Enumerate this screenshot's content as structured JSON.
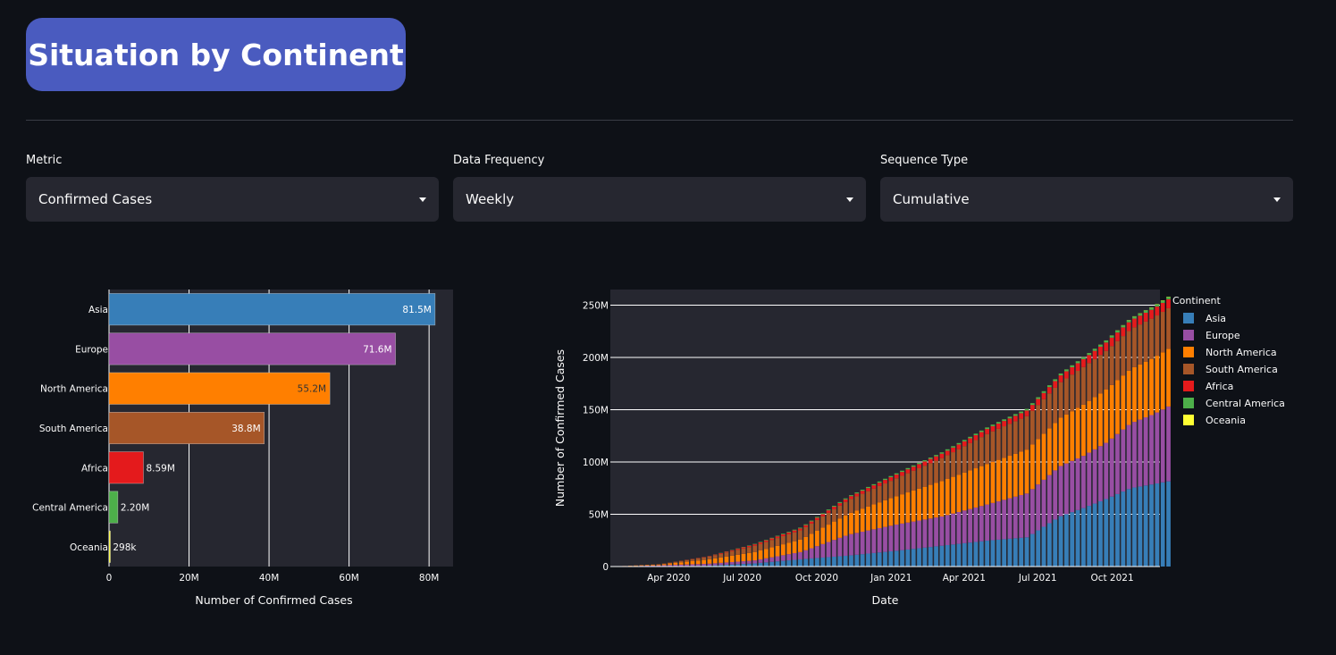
{
  "page": {
    "title": "Situation by Continent"
  },
  "filters": [
    {
      "label": "Metric",
      "value": "Confirmed Cases"
    },
    {
      "label": "Data Frequency",
      "value": "Weekly"
    },
    {
      "label": "Sequence Type",
      "value": "Cumulative"
    }
  ],
  "colors": {
    "background": "#0e1117",
    "plot_bg": "#262730",
    "accent": "#4a5bbf",
    "Asia": "#377eb8",
    "Europe": "#984ea3",
    "North America": "#ff7f00",
    "South America": "#a65628",
    "Africa": "#e41a1c",
    "Central America": "#4daf4a",
    "Oceania": "#ffff33"
  },
  "chart_data": [
    {
      "type": "bar",
      "orientation": "horizontal",
      "categories": [
        "Asia",
        "Europe",
        "North America",
        "South America",
        "Africa",
        "Central America",
        "Oceania"
      ],
      "values": [
        81500000,
        71600000,
        55200000,
        38800000,
        8590000,
        2200000,
        298000
      ],
      "data_labels": [
        "81.5M",
        "71.6M",
        "55.2M",
        "38.8M",
        "8.59M",
        "2.20M",
        "298k"
      ],
      "xlabel": "Number of Confirmed Cases",
      "ylabel": "",
      "xlim": [
        0,
        86000000
      ],
      "xticks": [
        0,
        20000000,
        40000000,
        60000000,
        80000000
      ],
      "xtick_labels": [
        "0",
        "20M",
        "40M",
        "60M",
        "80M"
      ],
      "grid": true
    },
    {
      "type": "bar",
      "stacked": true,
      "xlabel": "Date",
      "ylabel": "Number of Confirmed Cases",
      "ylim": [
        0,
        265000000
      ],
      "yticks": [
        0,
        50000000,
        100000000,
        150000000,
        200000000,
        250000000
      ],
      "ytick_labels": [
        "0",
        "50M",
        "100M",
        "150M",
        "200M",
        "250M"
      ],
      "xticks": [
        "2020-04-01",
        "2020-07-01",
        "2020-10-01",
        "2021-01-01",
        "2021-04-01",
        "2021-07-01",
        "2021-10-01"
      ],
      "xtick_labels": [
        "Apr 2020",
        "Jul 2020",
        "Oct 2020",
        "Jan 2021",
        "Apr 2021",
        "Jul 2021",
        "Oct 2021"
      ],
      "x_start": "2020-01-20",
      "x_end": "2021-11-29",
      "legend": {
        "title": "Continent",
        "placement": "right"
      },
      "series": [
        {
          "name": "Asia",
          "anchors": [
            [
              0,
              0
            ],
            [
              10,
              0.2
            ],
            [
              20,
              0.8
            ],
            [
              30,
              3
            ],
            [
              40,
              7
            ],
            [
              50,
              10.5
            ],
            [
              60,
              15
            ],
            [
              70,
              20
            ],
            [
              80,
              25
            ],
            [
              88,
              28
            ],
            [
              95,
              48
            ],
            [
              100,
              56
            ],
            [
              105,
              65
            ],
            [
              110,
              75
            ],
            [
              115,
              79
            ],
            [
              118,
              81.5
            ]
          ]
        },
        {
          "name": "Europe",
          "anchors": [
            [
              0,
              0
            ],
            [
              10,
              1
            ],
            [
              20,
              1.8
            ],
            [
              30,
              2.8
            ],
            [
              40,
              7
            ],
            [
              50,
              20
            ],
            [
              60,
              25
            ],
            [
              70,
              28
            ],
            [
              80,
              35
            ],
            [
              88,
              42
            ],
            [
              95,
              48
            ],
            [
              100,
              50
            ],
            [
              105,
              54
            ],
            [
              110,
              62
            ],
            [
              115,
              67
            ],
            [
              118,
              71.6
            ]
          ]
        },
        {
          "name": "North America",
          "anchors": [
            [
              0,
              0
            ],
            [
              10,
              0.8
            ],
            [
              20,
              4
            ],
            [
              30,
              8
            ],
            [
              40,
              12
            ],
            [
              50,
              20
            ],
            [
              60,
              27
            ],
            [
              70,
              34
            ],
            [
              80,
              39
            ],
            [
              88,
              42
            ],
            [
              95,
              46
            ],
            [
              100,
              49
            ],
            [
              105,
              51
            ],
            [
              110,
              52
            ],
            [
              115,
              54
            ],
            [
              118,
              55.2
            ]
          ]
        },
        {
          "name": "South America",
          "anchors": [
            [
              0,
              0
            ],
            [
              10,
              0.2
            ],
            [
              20,
              2.5
            ],
            [
              30,
              6
            ],
            [
              40,
              9
            ],
            [
              50,
              13
            ],
            [
              60,
              17
            ],
            [
              70,
              22
            ],
            [
              80,
              29
            ],
            [
              88,
              32
            ],
            [
              95,
              34
            ],
            [
              100,
              36
            ],
            [
              105,
              37
            ],
            [
              110,
              38
            ],
            [
              115,
              38.5
            ],
            [
              118,
              38.8
            ]
          ]
        },
        {
          "name": "Africa",
          "anchors": [
            [
              0,
              0
            ],
            [
              10,
              0.1
            ],
            [
              20,
              0.4
            ],
            [
              30,
              1.3
            ],
            [
              40,
              1.9
            ],
            [
              50,
              2.6
            ],
            [
              60,
              3.6
            ],
            [
              70,
              4.3
            ],
            [
              80,
              4.9
            ],
            [
              88,
              5.4
            ],
            [
              95,
              6.5
            ],
            [
              100,
              7.6
            ],
            [
              105,
              8.1
            ],
            [
              110,
              8.4
            ],
            [
              115,
              8.5
            ],
            [
              118,
              8.59
            ]
          ]
        },
        {
          "name": "Central America",
          "anchors": [
            [
              0,
              0
            ],
            [
              20,
              0.1
            ],
            [
              30,
              0.4
            ],
            [
              40,
              0.7
            ],
            [
              50,
              0.9
            ],
            [
              60,
              1.1
            ],
            [
              70,
              1.2
            ],
            [
              80,
              1.4
            ],
            [
              90,
              1.6
            ],
            [
              100,
              1.8
            ],
            [
              110,
              2.0
            ],
            [
              118,
              2.2
            ]
          ]
        },
        {
          "name": "Oceania",
          "anchors": [
            [
              0,
              0
            ],
            [
              20,
              0.01
            ],
            [
              30,
              0.03
            ],
            [
              50,
              0.04
            ],
            [
              80,
              0.05
            ],
            [
              95,
              0.06
            ],
            [
              100,
              0.07
            ],
            [
              105,
              0.12
            ],
            [
              110,
              0.2
            ],
            [
              115,
              0.26
            ],
            [
              118,
              0.298
            ]
          ]
        }
      ]
    }
  ]
}
